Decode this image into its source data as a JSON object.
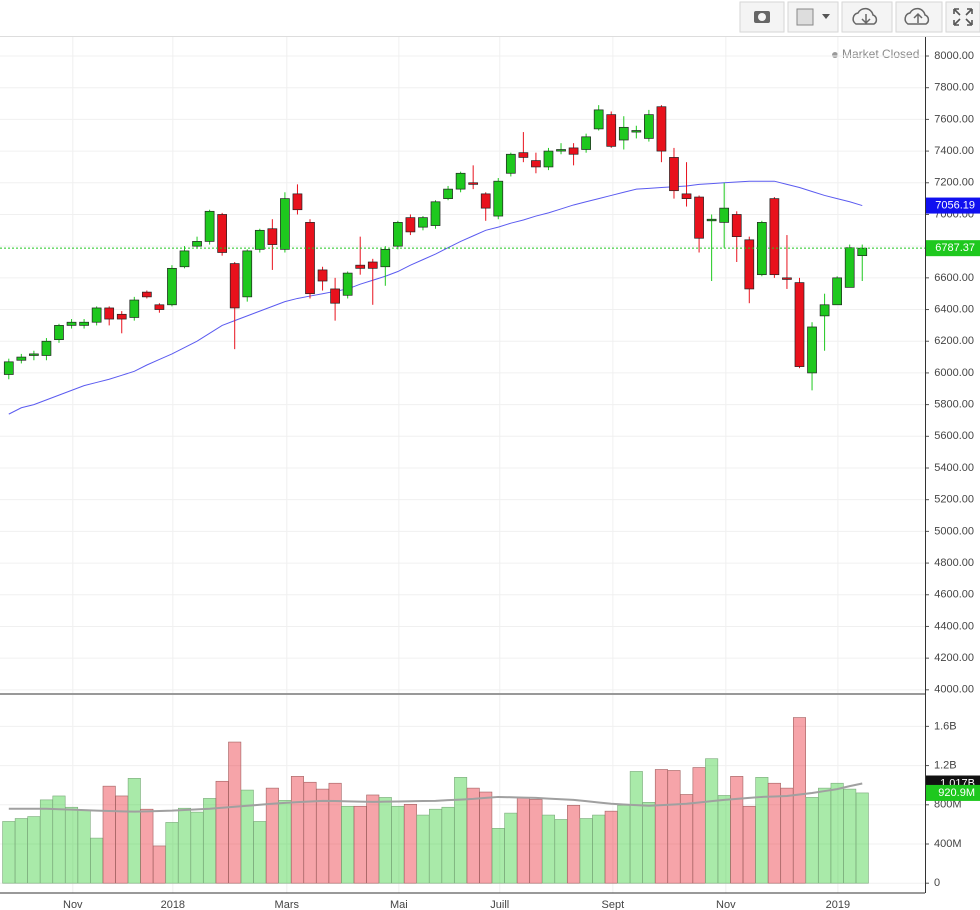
{
  "chart_data": {
    "type": "candlestick",
    "status": "Market Closed",
    "xlim": [
      -0.7,
      73
    ],
    "xticks": [
      {
        "value": 5.1,
        "label": "Nov"
      },
      {
        "value": 13.07,
        "label": "2018"
      },
      {
        "value": 22.15,
        "label": "Mars"
      },
      {
        "value": 31.08,
        "label": "Mai"
      },
      {
        "value": 39.12,
        "label": "Juill"
      },
      {
        "value": 48.13,
        "label": "Sept"
      },
      {
        "value": 57.13,
        "label": "Nov"
      },
      {
        "value": 66.06,
        "label": "2019"
      }
    ],
    "ylim": [
      3980,
      8120
    ],
    "yticks": [
      {
        "value": 4000,
        "label": "4000.00"
      },
      {
        "value": 4200,
        "label": "4200.00"
      },
      {
        "value": 4400,
        "label": "4400.00"
      },
      {
        "value": 4600,
        "label": "4600.00"
      },
      {
        "value": 4800,
        "label": "4800.00"
      },
      {
        "value": 5000,
        "label": "5000.00"
      },
      {
        "value": 5200,
        "label": "5200.00"
      },
      {
        "value": 5400,
        "label": "5400.00"
      },
      {
        "value": 5600,
        "label": "5600.00"
      },
      {
        "value": 5800,
        "label": "5800.00"
      },
      {
        "value": 6000,
        "label": "6000.00"
      },
      {
        "value": 6200,
        "label": "6200.00"
      },
      {
        "value": 6400,
        "label": "6400.00"
      },
      {
        "value": 6600,
        "label": "6600.00"
      },
      {
        "value": 6800,
        "label": "6800.00"
      },
      {
        "value": 7000,
        "label": "7000.00"
      },
      {
        "value": 7200,
        "label": "7200.00"
      },
      {
        "value": 7400,
        "label": "7400.00"
      },
      {
        "value": 7600,
        "label": "7600.00"
      },
      {
        "value": 7800,
        "label": "7800.00"
      },
      {
        "value": 8000,
        "label": "8000.00"
      }
    ],
    "grid": true,
    "up_color": "#1ec81e",
    "down_color": "#e8111c",
    "open": [
      5990,
      6080,
      6110,
      6110,
      6210,
      6300,
      6300,
      6320,
      6410,
      6370,
      6350,
      6510,
      6430,
      6430,
      6670,
      6800,
      6830,
      7000,
      6690,
      6480,
      6780,
      6910,
      6780,
      7130,
      6950,
      6650,
      6530,
      6490,
      6680,
      6700,
      6670,
      6800,
      6980,
      6920,
      6930,
      7100,
      7160,
      7200,
      7130,
      6990,
      7260,
      7390,
      7340,
      7300,
      7400,
      7420,
      7410,
      7540,
      7630,
      7470,
      7520,
      7480,
      7680,
      7360,
      7130,
      7110,
      6960,
      6950,
      7000,
      6840,
      6620,
      7100,
      6600,
      6570,
      6000,
      6360,
      6430,
      6540,
      6740
    ],
    "high": [
      6090,
      6120,
      6140,
      6220,
      6310,
      6340,
      6340,
      6420,
      6420,
      6390,
      6480,
      6520,
      6440,
      6680,
      6800,
      6860,
      7030,
      7010,
      6700,
      6780,
      6910,
      6970,
      7140,
      7190,
      6970,
      6670,
      6600,
      6640,
      6860,
      6720,
      6800,
      6960,
      7000,
      6990,
      7090,
      7180,
      7270,
      7310,
      7140,
      7230,
      7390,
      7520,
      7390,
      7420,
      7450,
      7450,
      7510,
      7690,
      7650,
      7620,
      7560,
      7660,
      7690,
      7420,
      7330,
      7120,
      7000,
      7200,
      7020,
      6860,
      6960,
      7110,
      6870,
      6600,
      6320,
      6500,
      6610,
      6810,
      6810
    ],
    "low": [
      5960,
      6060,
      6080,
      6080,
      6190,
      6280,
      6280,
      6300,
      6300,
      6250,
      6330,
      6470,
      6380,
      6420,
      6660,
      6790,
      6810,
      6740,
      6150,
      6450,
      6760,
      6650,
      6760,
      7000,
      6470,
      6520,
      6330,
      6470,
      6620,
      6430,
      6550,
      6780,
      6870,
      6900,
      6910,
      7090,
      7140,
      7160,
      6960,
      6970,
      7240,
      7330,
      7260,
      7280,
      7380,
      7310,
      7390,
      7530,
      7420,
      7410,
      7480,
      7460,
      7330,
      7100,
      7050,
      6760,
      6580,
      6790,
      6700,
      6440,
      6610,
      6600,
      6530,
      6030,
      5890,
      6140,
      6430,
      6540,
      6580
    ],
    "close": [
      6070,
      6100,
      6120,
      6200,
      6300,
      6320,
      6320,
      6410,
      6340,
      6340,
      6460,
      6480,
      6400,
      6660,
      6770,
      6830,
      7020,
      6760,
      6410,
      6770,
      6900,
      6810,
      7100,
      7030,
      6500,
      6580,
      6440,
      6630,
      6660,
      6660,
      6780,
      6950,
      6890,
      6980,
      7080,
      7160,
      7260,
      7190,
      7040,
      7210,
      7380,
      7360,
      7300,
      7400,
      7410,
      7380,
      7490,
      7660,
      7430,
      7550,
      7530,
      7630,
      7400,
      7150,
      7100,
      6850,
      6970,
      7040,
      6860,
      6530,
      6950,
      6620,
      6590,
      6040,
      6290,
      6430,
      6600,
      6790,
      6787.37
    ],
    "ma_color": "#5b5bf0",
    "ma": [
      5740,
      5780,
      5800,
      5830,
      5860,
      5890,
      5920,
      5940,
      5960,
      5985,
      6010,
      6050,
      6085,
      6120,
      6160,
      6200,
      6250,
      6300,
      6330,
      6360,
      6390,
      6420,
      6450,
      6470,
      6485,
      6500,
      6515,
      6530,
      6560,
      6585,
      6610,
      6640,
      6680,
      6715,
      6750,
      6790,
      6830,
      6865,
      6900,
      6920,
      6945,
      6965,
      6990,
      7010,
      7035,
      7060,
      7080,
      7100,
      7120,
      7140,
      7160,
      7165,
      7170,
      7175,
      7180,
      7190,
      7195,
      7200,
      7205,
      7210,
      7210,
      7210,
      7190,
      7170,
      7145,
      7120,
      7100,
      7080,
      7056.19
    ],
    "volume_ylim": [
      -100000000,
      1920000000
    ],
    "volume_ticks": [
      0,
      {
        "value": 400000000,
        "label": "400M"
      },
      {
        "value": 800000000,
        "label": "800M"
      },
      {
        "value": 1200000000,
        "label": "1.2B"
      },
      {
        "value": 1600000000,
        "label": "1.6B"
      }
    ],
    "volume": [
      630000000,
      660000000,
      680000000,
      850000000,
      890000000,
      775000000,
      745000000,
      460000000,
      990000000,
      890000000,
      1070000000,
      755000000,
      380000000,
      620000000,
      765000000,
      725000000,
      865000000,
      1040000000,
      1440000000,
      950000000,
      630000000,
      970000000,
      845000000,
      1090000000,
      1030000000,
      960000000,
      1020000000,
      785000000,
      785000000,
      900000000,
      875000000,
      785000000,
      805000000,
      695000000,
      755000000,
      775000000,
      1080000000,
      970000000,
      930000000,
      560000000,
      715000000,
      875000000,
      855000000,
      695000000,
      650000000,
      795000000,
      660000000,
      695000000,
      735000000,
      795000000,
      1140000000,
      825000000,
      1160000000,
      1150000000,
      905000000,
      1180000000,
      1270000000,
      895000000,
      1090000000,
      785000000,
      1080000000,
      1020000000,
      970000000,
      1690000000,
      875000000,
      970000000,
      1020000000,
      960000000,
      920900000
    ],
    "volume_last_label": "920.9M",
    "volume_ma_color": "#a0a0a0",
    "volume_ma": [
      760000000,
      760000000,
      760000000,
      760000000,
      755000000,
      750000000,
      745000000,
      740000000,
      737000000,
      733000000,
      730000000,
      733000000,
      737000000,
      740000000,
      747000000,
      753000000,
      760000000,
      770000000,
      780000000,
      790000000,
      800000000,
      810000000,
      820000000,
      827000000,
      833000000,
      840000000,
      838000000,
      835000000,
      832000000,
      830000000,
      832000000,
      834000000,
      836000000,
      838000000,
      840000000,
      847000000,
      853000000,
      860000000,
      870000000,
      880000000,
      877000000,
      873000000,
      870000000,
      863000000,
      857000000,
      850000000,
      837000000,
      823000000,
      810000000,
      803000000,
      797000000,
      790000000,
      797000000,
      803000000,
      810000000,
      823000000,
      837000000,
      850000000,
      860000000,
      870000000,
      880000000,
      885000000,
      890000000,
      905000000,
      920000000,
      940000000,
      960000000,
      990000000,
      1017000000
    ],
    "volume_ma_last_label": "1.017B"
  }
}
